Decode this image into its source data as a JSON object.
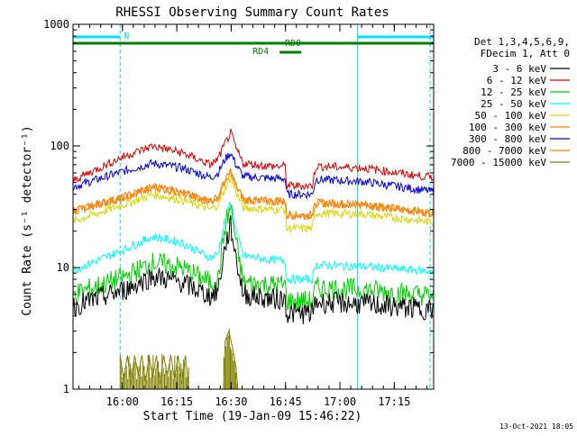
{
  "chart_data": {
    "type": "line",
    "title": "RHESSI Observing Summary Count Rates",
    "xlabel": "Start Time (19-Jan-09 15:46:22)",
    "ylabel": "Count Rate (s⁻¹ detector⁻¹)",
    "y_scale": "log",
    "ylim": [
      1,
      1000
    ],
    "xlim_minutes_after_start": [
      0,
      99.5
    ],
    "x_ticks": [
      {
        "label": "16:00",
        "minutes": 13.63
      },
      {
        "label": "16:15",
        "minutes": 28.63
      },
      {
        "label": "16:30",
        "minutes": 43.63
      },
      {
        "label": "16:45",
        "minutes": 58.63
      },
      {
        "label": "17:00",
        "minutes": 73.63
      },
      {
        "label": "17:15",
        "minutes": 88.63
      }
    ],
    "y_ticks": [
      {
        "label": "1000",
        "value": 1000
      },
      {
        "label": "100",
        "value": 100
      },
      {
        "label": "10",
        "value": 10
      },
      {
        "label": "1",
        "value": 1
      }
    ],
    "legend_header": [
      "Det 1,3,4,5,6,9,",
      "FDecim 1, Att 0"
    ],
    "legend_position": "right",
    "series": [
      {
        "name": "3 - 6 keV",
        "color": "#000000",
        "points": [
          [
            0,
            4.8
          ],
          [
            14,
            6.5
          ],
          [
            22,
            8.5
          ],
          [
            30,
            7.5
          ],
          [
            38,
            5.8
          ],
          [
            40,
            6.5
          ],
          [
            42,
            15
          ],
          [
            43.5,
            22
          ],
          [
            45,
            12
          ],
          [
            47,
            6
          ],
          [
            55,
            5.5
          ],
          [
            58.5,
            5.5
          ],
          [
            59,
            4.2
          ],
          [
            66,
            4.2
          ],
          [
            67,
            5.2
          ],
          [
            80,
            5
          ],
          [
            95,
            4.6
          ],
          [
            99.5,
            4.5
          ]
        ]
      },
      {
        "name": "6 - 12 keV",
        "color": "#e00000",
        "points": [
          [
            0,
            52
          ],
          [
            14,
            82
          ],
          [
            22,
            100
          ],
          [
            30,
            88
          ],
          [
            38,
            70
          ],
          [
            40,
            78
          ],
          [
            42,
            105
          ],
          [
            43.5,
            128
          ],
          [
            45,
            95
          ],
          [
            47,
            72
          ],
          [
            55,
            68
          ],
          [
            58.5,
            68
          ],
          [
            59,
            47
          ],
          [
            66,
            47
          ],
          [
            67,
            68
          ],
          [
            80,
            66
          ],
          [
            95,
            57
          ],
          [
            99.5,
            55
          ]
        ]
      },
      {
        "name": "12 - 25 keV",
        "color": "#00d000",
        "points": [
          [
            0,
            6
          ],
          [
            14,
            8.3
          ],
          [
            22,
            11
          ],
          [
            30,
            10
          ],
          [
            38,
            7.5
          ],
          [
            40,
            8
          ],
          [
            42,
            22
          ],
          [
            43.5,
            32
          ],
          [
            45,
            16
          ],
          [
            47,
            7.5
          ],
          [
            55,
            7.2
          ],
          [
            58.5,
            7.2
          ],
          [
            59,
            5.3
          ],
          [
            66,
            5.3
          ],
          [
            67,
            6.8
          ],
          [
            80,
            6.6
          ],
          [
            95,
            6
          ],
          [
            99.5,
            5.8
          ]
        ]
      },
      {
        "name": "25 - 50 keV",
        "color": "#00ffff",
        "points": [
          [
            0,
            9.5
          ],
          [
            14,
            14
          ],
          [
            22,
            18
          ],
          [
            30,
            16
          ],
          [
            38,
            12
          ],
          [
            40,
            13
          ],
          [
            42,
            25
          ],
          [
            43.5,
            35
          ],
          [
            45,
            20
          ],
          [
            47,
            12.5
          ],
          [
            55,
            11.5
          ],
          [
            58.5,
            11.5
          ],
          [
            59,
            8
          ],
          [
            66,
            8
          ],
          [
            67,
            10.5
          ],
          [
            80,
            10.2
          ],
          [
            95,
            9.5
          ],
          [
            99.5,
            9.2
          ]
        ]
      },
      {
        "name": "50 - 100 keV",
        "color": "#d8d800",
        "points": [
          [
            0,
            24
          ],
          [
            14,
            33
          ],
          [
            22,
            40
          ],
          [
            30,
            36
          ],
          [
            38,
            30
          ],
          [
            40,
            33
          ],
          [
            42,
            45
          ],
          [
            43.5,
            55
          ],
          [
            45,
            42
          ],
          [
            47,
            31
          ],
          [
            55,
            30
          ],
          [
            58.5,
            30
          ],
          [
            59,
            21
          ],
          [
            66,
            21
          ],
          [
            67,
            28
          ],
          [
            80,
            27.5
          ],
          [
            95,
            24.5
          ],
          [
            99.5,
            23.5
          ]
        ]
      },
      {
        "name": "100 - 300 keV",
        "color": "#ff8000",
        "points": [
          [
            0,
            29
          ],
          [
            14,
            38
          ],
          [
            22,
            46
          ],
          [
            30,
            41
          ],
          [
            38,
            35
          ],
          [
            40,
            38
          ],
          [
            42,
            52
          ],
          [
            43.5,
            62
          ],
          [
            45,
            47
          ],
          [
            47,
            36
          ],
          [
            55,
            35
          ],
          [
            58.5,
            35
          ],
          [
            59,
            27
          ],
          [
            66,
            27
          ],
          [
            67,
            34
          ],
          [
            80,
            33
          ],
          [
            95,
            29
          ],
          [
            99.5,
            28
          ]
        ]
      },
      {
        "name": "300 - 800 keV",
        "color": "#0000e0",
        "points": [
          [
            0,
            46
          ],
          [
            14,
            62
          ],
          [
            22,
            72
          ],
          [
            30,
            66
          ],
          [
            38,
            55
          ],
          [
            40,
            60
          ],
          [
            42,
            78
          ],
          [
            43.5,
            88
          ],
          [
            45,
            70
          ],
          [
            47,
            56
          ],
          [
            55,
            54
          ],
          [
            58.5,
            54
          ],
          [
            59,
            40
          ],
          [
            66,
            40
          ],
          [
            67,
            53
          ],
          [
            80,
            51
          ],
          [
            95,
            44
          ],
          [
            99.5,
            42
          ]
        ]
      },
      {
        "name": "800 - 7000 keV",
        "color": "#ff8000",
        "points": [
          [
            0,
            29
          ],
          [
            14,
            38
          ],
          [
            22,
            46
          ],
          [
            30,
            41
          ],
          [
            38,
            35
          ],
          [
            40,
            38
          ],
          [
            42,
            52
          ],
          [
            43.5,
            62
          ],
          [
            45,
            47
          ],
          [
            47,
            36
          ],
          [
            55,
            35
          ],
          [
            58.5,
            35
          ],
          [
            59,
            27
          ],
          [
            66,
            27
          ],
          [
            67,
            34
          ],
          [
            80,
            33
          ],
          [
            95,
            29
          ],
          [
            99.5,
            28
          ]
        ]
      },
      {
        "name": "7000 - 15000 keV",
        "color": "#808000",
        "points": [
          [
            13,
            1
          ],
          [
            13,
            1.9
          ],
          [
            14,
            1.2
          ],
          [
            15,
            1.9
          ],
          [
            16,
            1.1
          ],
          [
            17,
            1.9
          ],
          [
            18,
            1.3
          ],
          [
            19,
            1.9
          ],
          [
            20,
            1.15
          ],
          [
            21,
            1.9
          ],
          [
            22,
            1.25
          ],
          [
            23,
            1.9
          ],
          [
            24,
            1.1
          ],
          [
            25,
            1.9
          ],
          [
            26,
            1.3
          ],
          [
            27,
            1.9
          ],
          [
            28,
            1.2
          ],
          [
            29,
            1.9
          ],
          [
            30,
            1.1
          ],
          [
            31,
            1.9
          ],
          [
            32,
            1
          ],
          [
            41.5,
            1
          ],
          [
            42,
            2.5
          ],
          [
            43,
            3
          ],
          [
            44,
            2.2
          ],
          [
            45,
            1.5
          ],
          [
            45.5,
            1
          ]
        ]
      }
    ],
    "bars": [
      {
        "label": "N",
        "color": "#00e0ff",
        "segments_minutes": [
          [
            0,
            13
          ],
          [
            78.5,
            99.5
          ]
        ]
      },
      {
        "label": "RD0",
        "color": "#008000",
        "segments_minutes": [
          [
            0,
            99.5
          ]
        ]
      },
      {
        "label": "RD4",
        "color": "#008000",
        "segments_minutes": [
          [
            57,
            63
          ]
        ]
      }
    ],
    "vertical_lines": [
      {
        "minutes": 0,
        "style": "solid",
        "color": "#00e0ff"
      },
      {
        "minutes": 13,
        "style": "dashed",
        "color": "#00e0ff"
      },
      {
        "minutes": 78.5,
        "style": "solid",
        "color": "#00e0ff"
      },
      {
        "minutes": 98.5,
        "style": "dashed",
        "color": "#00e0ff"
      }
    ]
  },
  "footer": {
    "timestamp": "13-Oct-2021 18:05"
  }
}
